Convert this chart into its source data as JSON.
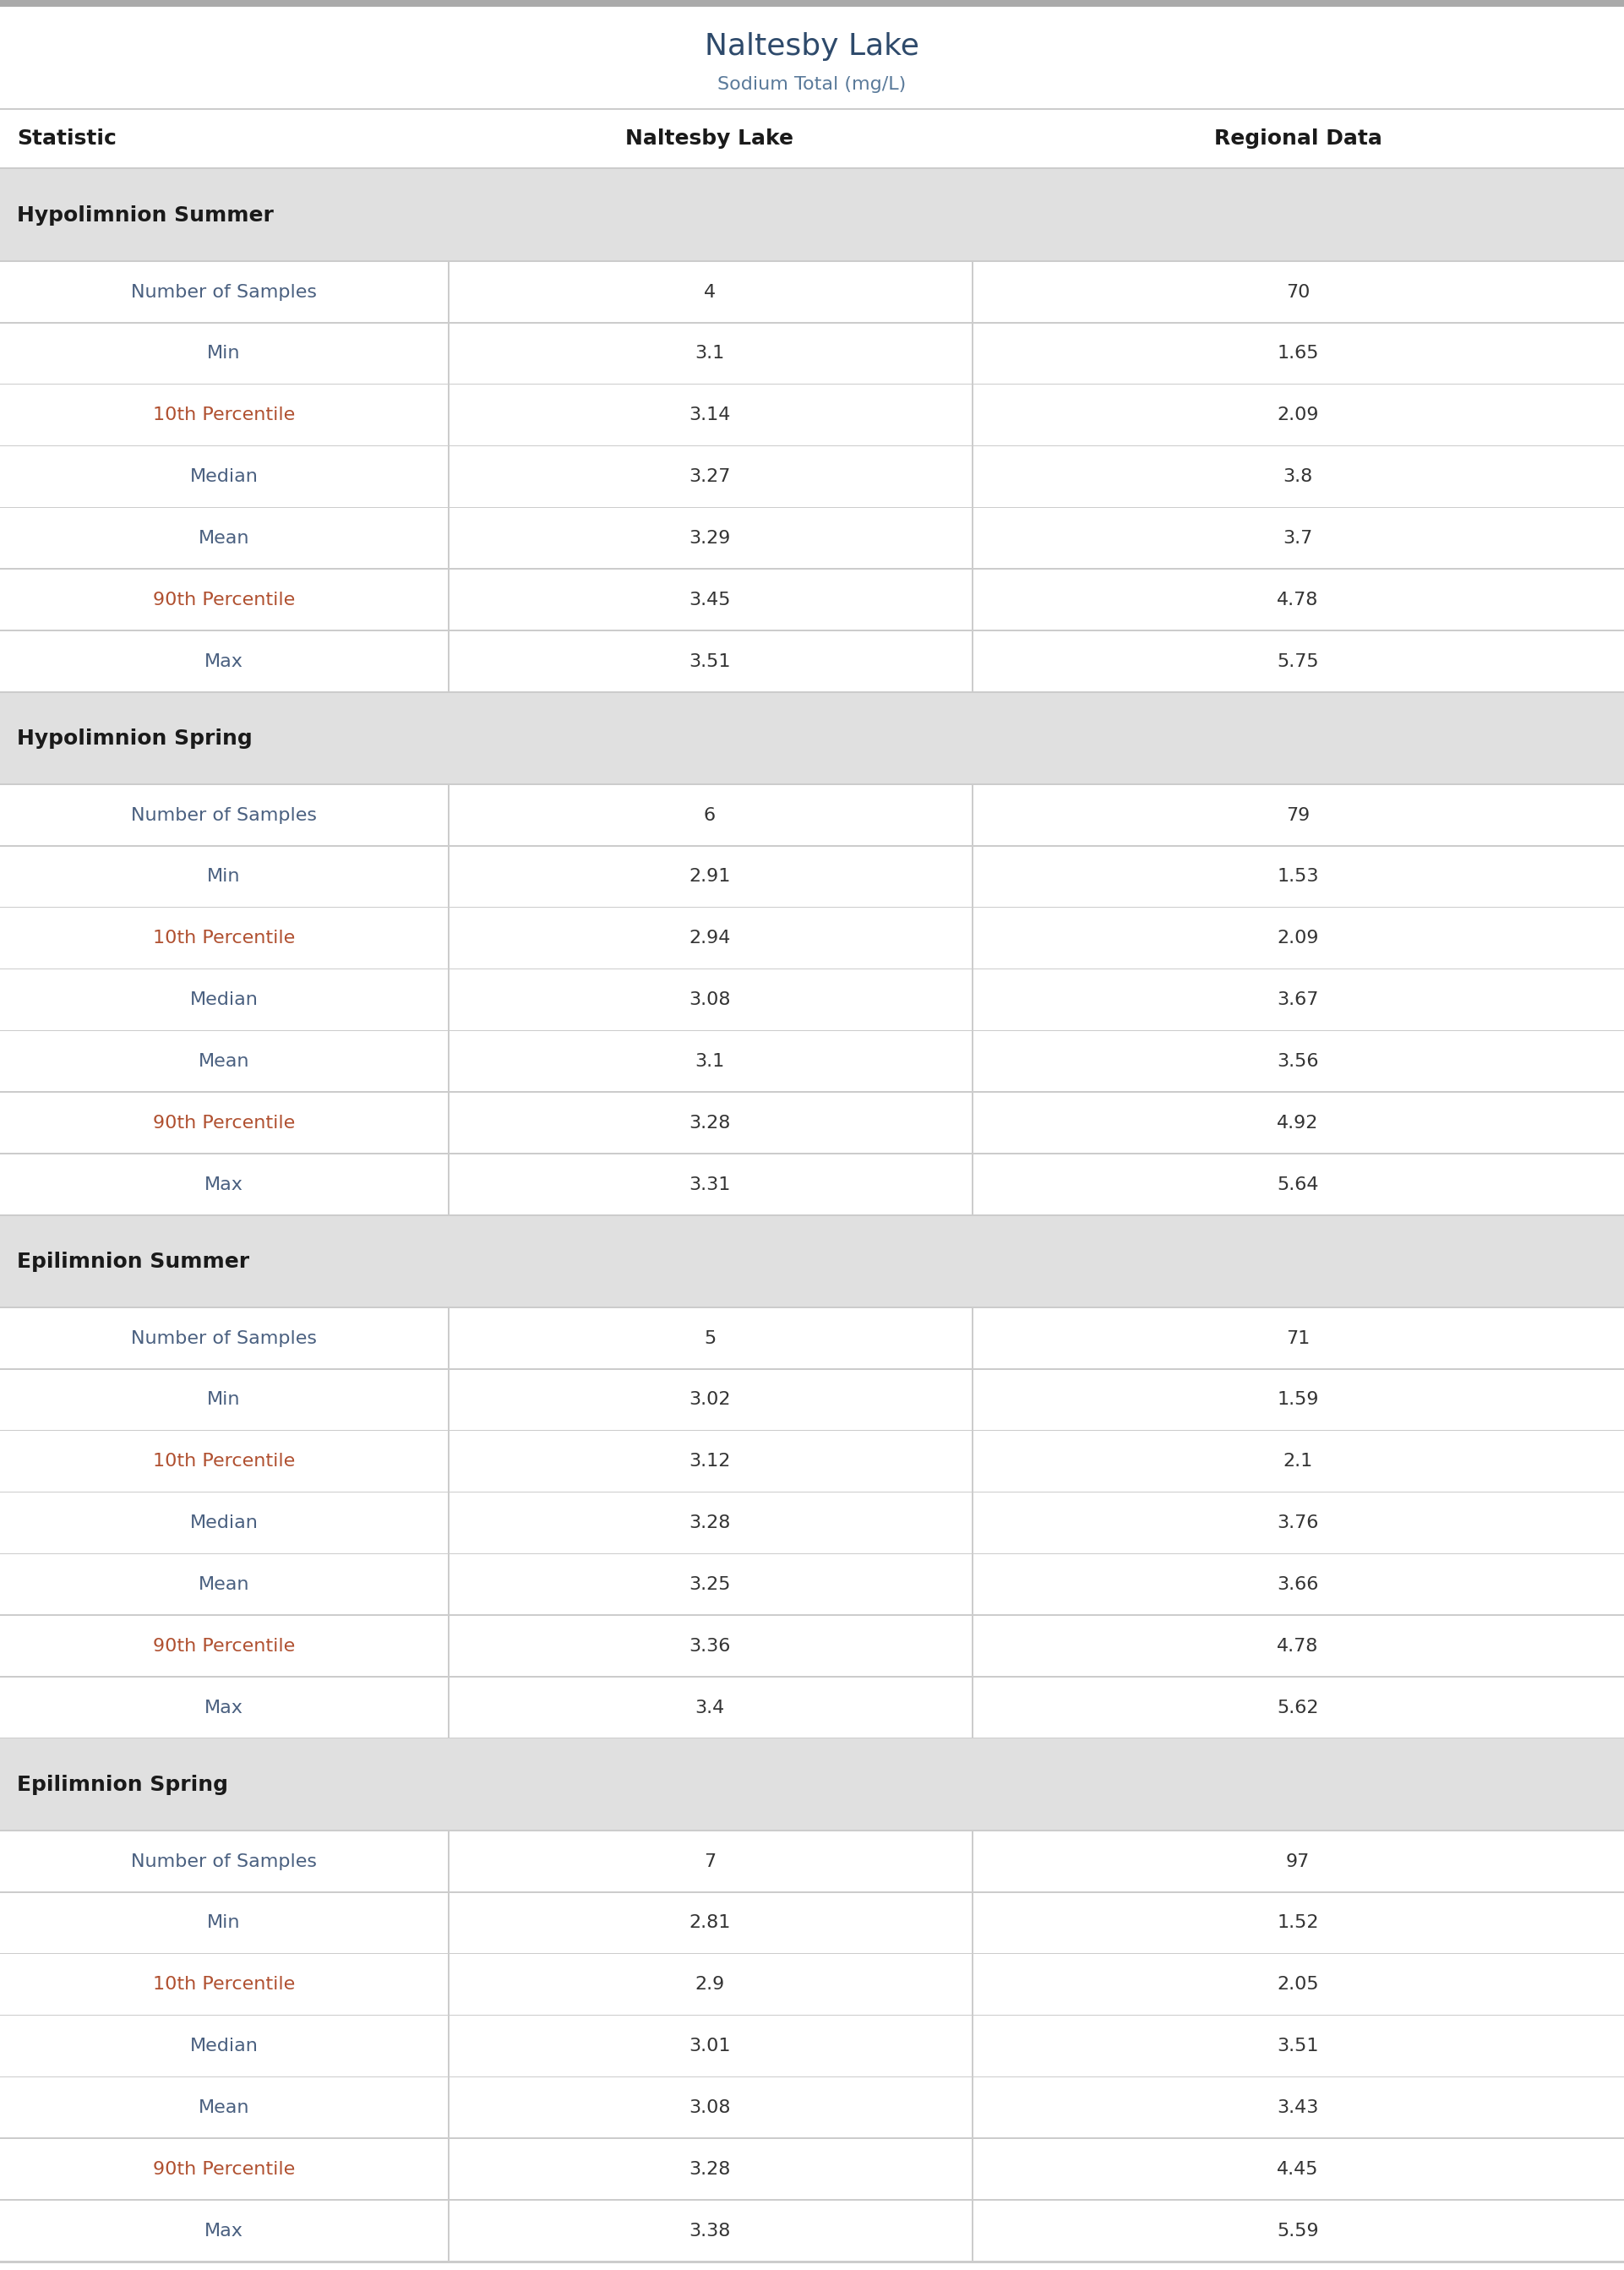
{
  "title": "Naltesby Lake",
  "subtitle": "Sodium Total (mg/L)",
  "col_headers": [
    "Statistic",
    "Naltesby Lake",
    "Regional Data"
  ],
  "sections": [
    {
      "header": "Hypolimnion Summer",
      "rows": [
        [
          "Number of Samples",
          "4",
          "70"
        ],
        [
          "Min",
          "3.1",
          "1.65"
        ],
        [
          "10th Percentile",
          "3.14",
          "2.09"
        ],
        [
          "Median",
          "3.27",
          "3.8"
        ],
        [
          "Mean",
          "3.29",
          "3.7"
        ],
        [
          "90th Percentile",
          "3.45",
          "4.78"
        ],
        [
          "Max",
          "3.51",
          "5.75"
        ]
      ]
    },
    {
      "header": "Hypolimnion Spring",
      "rows": [
        [
          "Number of Samples",
          "6",
          "79"
        ],
        [
          "Min",
          "2.91",
          "1.53"
        ],
        [
          "10th Percentile",
          "2.94",
          "2.09"
        ],
        [
          "Median",
          "3.08",
          "3.67"
        ],
        [
          "Mean",
          "3.1",
          "3.56"
        ],
        [
          "90th Percentile",
          "3.28",
          "4.92"
        ],
        [
          "Max",
          "3.31",
          "5.64"
        ]
      ]
    },
    {
      "header": "Epilimnion Summer",
      "rows": [
        [
          "Number of Samples",
          "5",
          "71"
        ],
        [
          "Min",
          "3.02",
          "1.59"
        ],
        [
          "10th Percentile",
          "3.12",
          "2.1"
        ],
        [
          "Median",
          "3.28",
          "3.76"
        ],
        [
          "Mean",
          "3.25",
          "3.66"
        ],
        [
          "90th Percentile",
          "3.36",
          "4.78"
        ],
        [
          "Max",
          "3.4",
          "5.62"
        ]
      ]
    },
    {
      "header": "Epilimnion Spring",
      "rows": [
        [
          "Number of Samples",
          "7",
          "97"
        ],
        [
          "Min",
          "2.81",
          "1.52"
        ],
        [
          "10th Percentile",
          "2.9",
          "2.05"
        ],
        [
          "Median",
          "3.01",
          "3.51"
        ],
        [
          "Mean",
          "3.08",
          "3.43"
        ],
        [
          "90th Percentile",
          "3.28",
          "4.45"
        ],
        [
          "Max",
          "3.38",
          "5.59"
        ]
      ]
    }
  ],
  "title_color": "#2e4a6b",
  "subtitle_color": "#5a7a9a",
  "header_bg_color": "#e0e0e0",
  "header_text_color": "#1a1a1a",
  "col_header_text_color": "#1a1a1a",
  "row_text_color": "#4a6080",
  "value_text_color": "#333333",
  "divider_color": "#cccccc",
  "top_bar_color": "#999999",
  "percentile_color": "#b05030",
  "title_fontsize": 26,
  "subtitle_fontsize": 16,
  "col_header_fontsize": 18,
  "section_header_fontsize": 18,
  "row_fontsize": 16
}
